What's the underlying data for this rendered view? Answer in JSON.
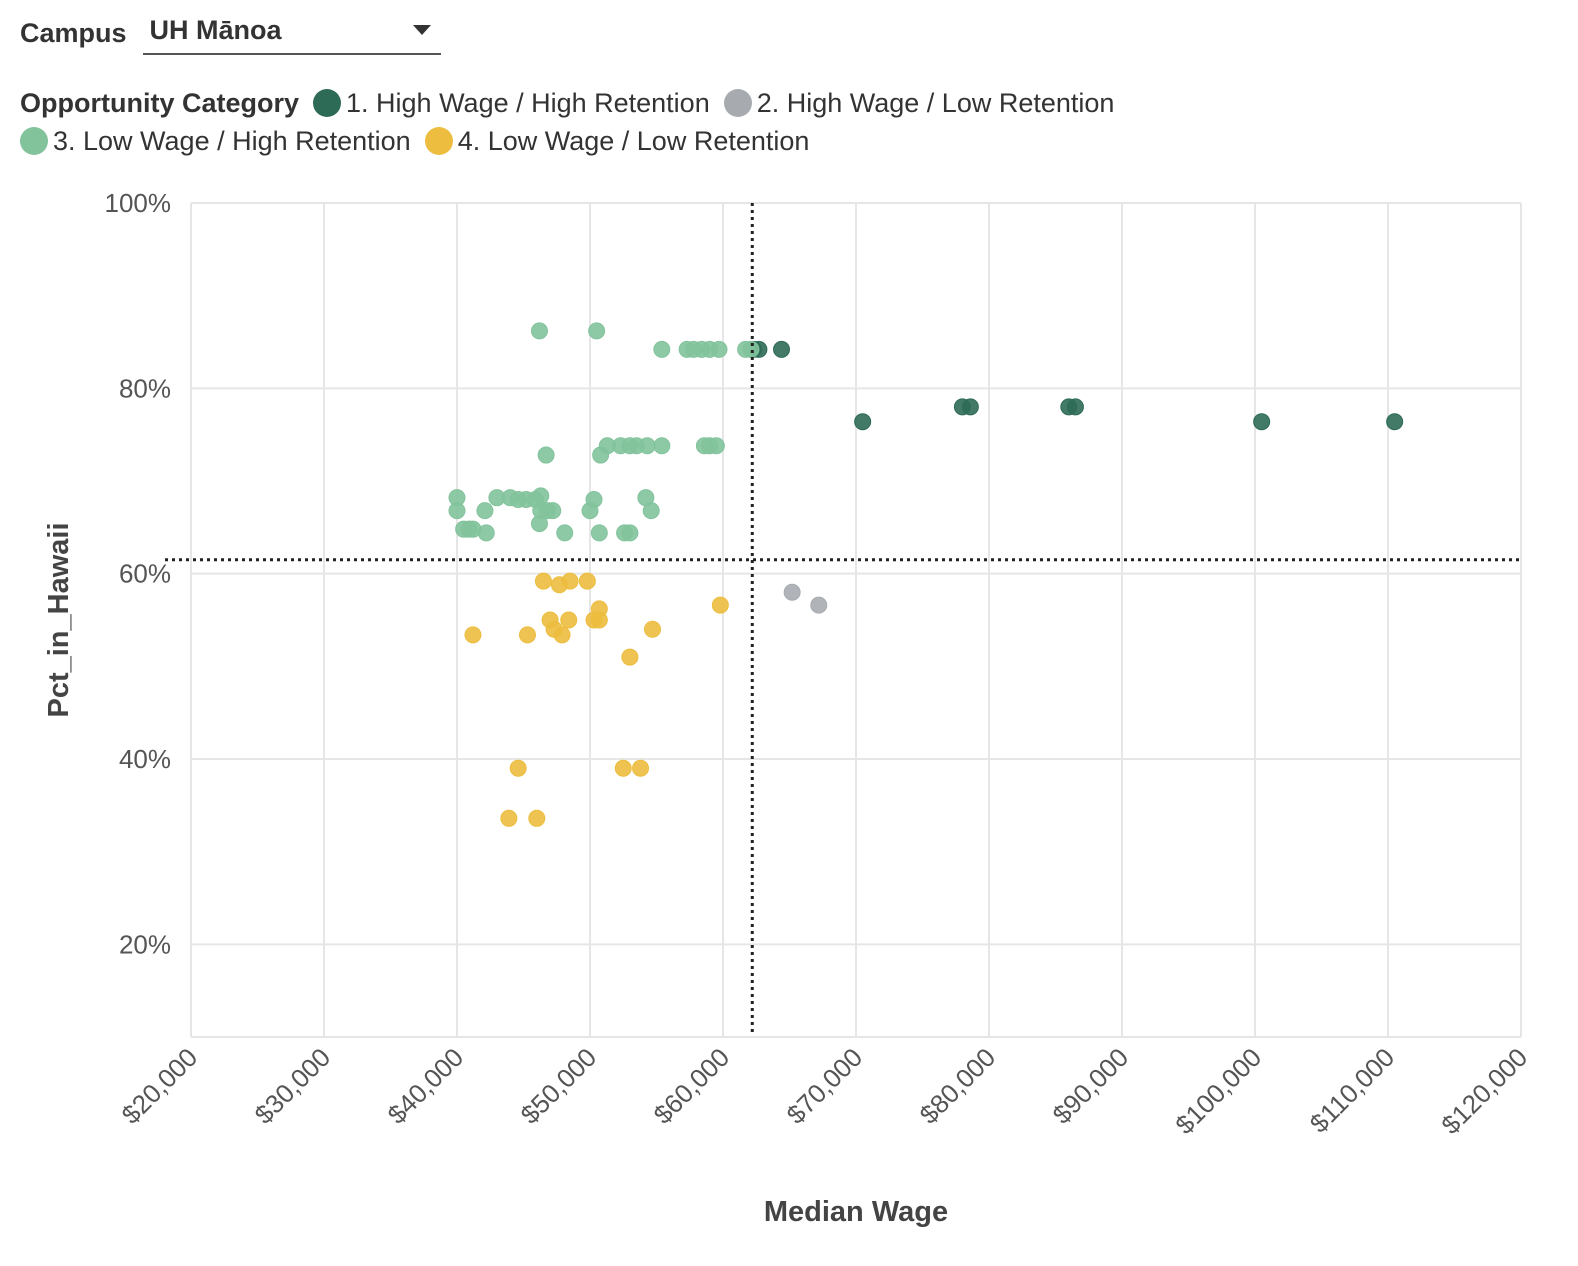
{
  "filter": {
    "label": "Campus",
    "value": "UH Mānoa"
  },
  "legend": {
    "title": "Opportunity Category",
    "items": [
      {
        "label": "1. High Wage / High Retention",
        "color": "#2e6b57"
      },
      {
        "label": "2. High Wage / Low Retention",
        "color": "#a7abb0"
      },
      {
        "label": "3. Low Wage / High Retention",
        "color": "#82c39c"
      },
      {
        "label": "4. Low Wage / Low Retention",
        "color": "#ecbd3e"
      }
    ]
  },
  "chart_data": {
    "type": "scatter",
    "title": "",
    "xlabel": "Median Wage",
    "ylabel": "Pct_in_Hawaii",
    "xlim": [
      20000,
      120000
    ],
    "ylim": [
      10,
      100
    ],
    "xticks": [
      20000,
      30000,
      40000,
      50000,
      60000,
      70000,
      80000,
      90000,
      100000,
      110000,
      120000
    ],
    "xtick_labels": [
      "$20,000",
      "$30,000",
      "$40,000",
      "$50,000",
      "$60,000",
      "$70,000",
      "$80,000",
      "$90,000",
      "$100,000",
      "$110,000",
      "$120,000"
    ],
    "yticks": [
      20,
      40,
      60,
      80,
      100
    ],
    "ytick_labels": [
      "20%",
      "40%",
      "60%",
      "80%",
      "100%"
    ],
    "grid": true,
    "legend_position": "top",
    "reference_lines": {
      "median_wage": 62200,
      "pct_in_hawaii": 61.5
    },
    "series": [
      {
        "name": "1. High Wage / High Retention",
        "color": "#2e6b57",
        "points": [
          [
            62300,
            84.2
          ],
          [
            62700,
            84.2
          ],
          [
            64400,
            84.2
          ],
          [
            70500,
            76.4
          ],
          [
            78000,
            78.0
          ],
          [
            78600,
            78.0
          ],
          [
            86000,
            78.0
          ],
          [
            86500,
            78.0
          ],
          [
            100500,
            76.4
          ],
          [
            110500,
            76.4
          ]
        ]
      },
      {
        "name": "2. High Wage / Low Retention",
        "color": "#a7abb0",
        "points": [
          [
            65200,
            58.0
          ],
          [
            67200,
            56.6
          ]
        ]
      },
      {
        "name": "3. Low Wage / High Retention",
        "color": "#82c39c",
        "points": [
          [
            46200,
            86.2
          ],
          [
            50500,
            86.2
          ],
          [
            55400,
            84.2
          ],
          [
            57300,
            84.2
          ],
          [
            57800,
            84.2
          ],
          [
            58400,
            84.2
          ],
          [
            59000,
            84.2
          ],
          [
            59700,
            84.2
          ],
          [
            61700,
            84.2
          ],
          [
            62100,
            84.2
          ],
          [
            51300,
            73.8
          ],
          [
            52300,
            73.8
          ],
          [
            53000,
            73.8
          ],
          [
            53500,
            73.8
          ],
          [
            54300,
            73.8
          ],
          [
            55400,
            73.8
          ],
          [
            58600,
            73.8
          ],
          [
            59000,
            73.8
          ],
          [
            59500,
            73.8
          ],
          [
            46700,
            72.8
          ],
          [
            50800,
            72.8
          ],
          [
            40000,
            68.2
          ],
          [
            43000,
            68.2
          ],
          [
            44000,
            68.2
          ],
          [
            44600,
            68.0
          ],
          [
            45200,
            68.0
          ],
          [
            45900,
            68.0
          ],
          [
            46300,
            68.4
          ],
          [
            50300,
            68.0
          ],
          [
            54200,
            68.2
          ],
          [
            40000,
            66.8
          ],
          [
            42100,
            66.8
          ],
          [
            46300,
            66.8
          ],
          [
            46800,
            66.8
          ],
          [
            47200,
            66.8
          ],
          [
            50000,
            66.8
          ],
          [
            54600,
            66.8
          ],
          [
            40500,
            64.8
          ],
          [
            40900,
            64.8
          ],
          [
            41200,
            64.8
          ],
          [
            46200,
            65.4
          ],
          [
            42200,
            64.4
          ],
          [
            48100,
            64.4
          ],
          [
            50700,
            64.4
          ],
          [
            52600,
            64.4
          ],
          [
            53000,
            64.4
          ]
        ]
      },
      {
        "name": "4. Low Wage / Low Retention",
        "color": "#ecbd3e",
        "points": [
          [
            46500,
            59.2
          ],
          [
            47700,
            58.8
          ],
          [
            48500,
            59.2
          ],
          [
            49800,
            59.2
          ],
          [
            50700,
            56.2
          ],
          [
            59800,
            56.6
          ],
          [
            47000,
            55.0
          ],
          [
            48400,
            55.0
          ],
          [
            50300,
            55.0
          ],
          [
            50700,
            55.0
          ],
          [
            41200,
            53.4
          ],
          [
            45300,
            53.4
          ],
          [
            47300,
            54.0
          ],
          [
            47900,
            53.4
          ],
          [
            54700,
            54.0
          ],
          [
            53000,
            51.0
          ],
          [
            44600,
            39.0
          ],
          [
            52500,
            39.0
          ],
          [
            53800,
            39.0
          ],
          [
            43900,
            33.6
          ],
          [
            46000,
            33.6
          ]
        ]
      }
    ]
  }
}
